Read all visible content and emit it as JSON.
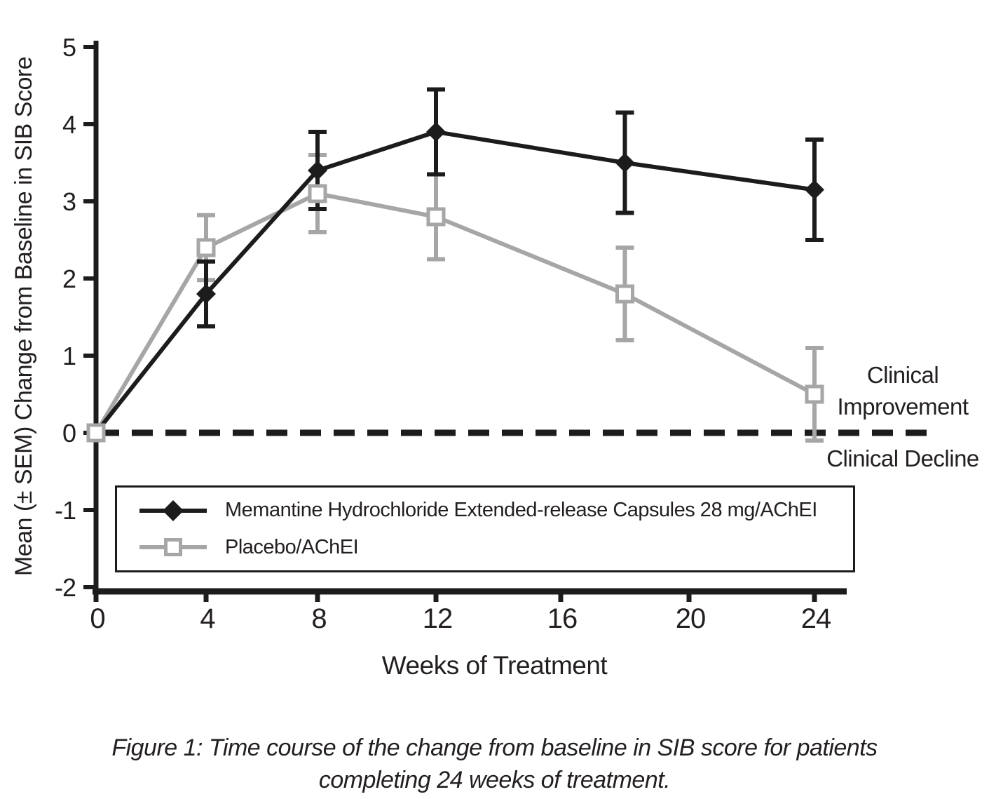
{
  "colors": {
    "series_black": "#1c1c1c",
    "series_gray": "#a6a6a6",
    "text": "#231f20",
    "background": "#ffffff"
  },
  "chart_data": {
    "type": "line",
    "title": "",
    "xlabel": "Weeks of Treatment",
    "ylabel": "Mean (± SEM) Change from Baseline in SIB Score",
    "x": [
      0,
      4,
      8,
      12,
      18,
      24
    ],
    "x_ticks": [
      0,
      4,
      8,
      12,
      16,
      20,
      24
    ],
    "y_ticks": [
      5,
      4,
      3,
      2,
      1,
      0,
      -1,
      -2
    ],
    "ylim": [
      -2,
      5
    ],
    "xlim": [
      0,
      25
    ],
    "grid": false,
    "legend_position": "inside-bottom-left",
    "series": [
      {
        "name": "Memantine Hydrochloride Extended-release Capsules 28 mg/AChEI",
        "marker": "filled-diamond",
        "color": "#1c1c1c",
        "values": [
          0,
          1.8,
          3.4,
          3.9,
          3.5,
          3.15
        ],
        "sem": [
          0,
          0.42,
          0.5,
          0.55,
          0.65,
          0.65
        ]
      },
      {
        "name": "Placebo/AChEI",
        "marker": "open-square",
        "color": "#a6a6a6",
        "values": [
          0,
          2.4,
          3.1,
          2.8,
          1.8,
          0.5
        ],
        "sem": [
          0,
          0.42,
          0.5,
          0.55,
          0.6,
          0.6
        ]
      }
    ],
    "reference_line": {
      "y": 0,
      "style": "dashed",
      "color": "#1c1c1c",
      "label_above": "Clinical Improvement",
      "label_below": "Clinical Decline"
    }
  },
  "axis_labels": {
    "x": "Weeks of Treatment",
    "y": "Mean (± SEM) Change from Baseline in SIB Score"
  },
  "annotations": {
    "improvement_line1": "Clinical",
    "improvement_line2": "Improvement",
    "decline": "Clinical Decline"
  },
  "legend": {
    "items": [
      {
        "label": "Memantine Hydrochloride Extended-release Capsules 28 mg/AChEI"
      },
      {
        "label": "Placebo/AChEI"
      }
    ]
  },
  "caption": {
    "line1": "Figure 1: Time course of the change from baseline in SIB score for patients",
    "line2": "completing 24 weeks of treatment."
  }
}
